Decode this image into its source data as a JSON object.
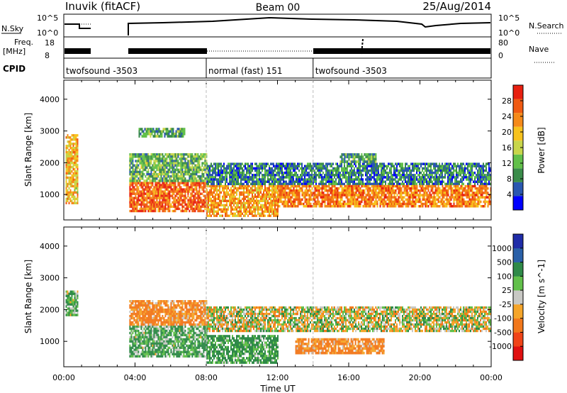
{
  "header": {
    "station": "Inuvik (fitACF)",
    "beam": "Beam 00",
    "date": "25/Aug/2014"
  },
  "panels": {
    "nsky": {
      "left_label": "N.Sky",
      "right_label": "N.Search",
      "left_ticks": [
        "10^5",
        "10^0"
      ],
      "right_ticks": [
        "10^5",
        "10^0"
      ]
    },
    "freq": {
      "left_label_1": "Freq.",
      "left_label_2": "[MHz]",
      "left_ticks": [
        "18",
        "8"
      ],
      "right_label": "Nave",
      "right_ticks": [
        "80",
        "0"
      ]
    },
    "cpid": {
      "label": "CPID",
      "segments": [
        {
          "label": "twofsound -3503",
          "start_hour": 0,
          "end_hour": 8
        },
        {
          "label": "normal (fast) 151",
          "start_hour": 8,
          "end_hour": 14
        },
        {
          "label": "twofsound -3503",
          "start_hour": 14,
          "end_hour": 24
        }
      ]
    }
  },
  "colors": {
    "power_scale": [
      "#0000ff",
      "#2a57b0",
      "#3a8c4a",
      "#62c04a",
      "#c8d64a",
      "#f7c21e",
      "#f58a1a",
      "#f05a12",
      "#e82010"
    ],
    "velocity_scale": [
      "#e01010",
      "#f04418",
      "#f2781c",
      "#f5a52a",
      "#c8c8c4",
      "#62c04a",
      "#2f8a48",
      "#2a60a8",
      "#1f2ca8"
    ]
  },
  "chart_data": [
    {
      "type": "heatmap",
      "title": "",
      "xlabel": "",
      "ylabel": "Slant Range [km]",
      "xlim": [
        0,
        24
      ],
      "ylim": [
        200,
        4600
      ],
      "x_ticks": [
        "00:00",
        "04:00",
        "08:00",
        "12:00",
        "16:00",
        "20:00",
        "00:00"
      ],
      "y_ticks": [
        1000,
        2000,
        3000,
        4000
      ],
      "colorbar": {
        "label": "Power [dB]",
        "range": [
          0,
          32
        ],
        "ticks": [
          4,
          8,
          12,
          16,
          20,
          24,
          28
        ]
      },
      "data_gap_hours": [
        [
          1.45,
          3.6
        ]
      ],
      "echo_regions": [
        {
          "t": [
            0.1,
            0.8
          ],
          "r": [
            700,
            2900
          ],
          "value": 20
        },
        {
          "t": [
            3.6,
            8.0
          ],
          "r": [
            450,
            1400
          ],
          "value": 26
        },
        {
          "t": [
            3.6,
            8.0
          ],
          "r": [
            1400,
            2300
          ],
          "value": 12
        },
        {
          "t": [
            4.2,
            6.8
          ],
          "r": [
            2800,
            3100
          ],
          "value": 10
        },
        {
          "t": [
            8.0,
            12.0
          ],
          "r": [
            300,
            1300
          ],
          "value": 22
        },
        {
          "t": [
            8.0,
            24.0
          ],
          "r": [
            1300,
            2000
          ],
          "value": 8
        },
        {
          "t": [
            12.0,
            24.0
          ],
          "r": [
            600,
            1300
          ],
          "value": 24
        },
        {
          "t": [
            15.5,
            17.5
          ],
          "r": [
            2000,
            2300
          ],
          "value": 10
        }
      ]
    },
    {
      "type": "heatmap",
      "title": "",
      "xlabel": "Time UT",
      "ylabel": "Slant Range [km]",
      "xlim": [
        0,
        24
      ],
      "ylim": [
        200,
        4600
      ],
      "x_ticks": [
        "00:00",
        "04:00",
        "08:00",
        "12:00",
        "16:00",
        "20:00",
        "00:00"
      ],
      "y_ticks": [
        1000,
        2000,
        3000,
        4000
      ],
      "colorbar": {
        "label": "Velocity [m s^-1]",
        "ticks": [
          "1000",
          "500",
          "100",
          "25",
          "-25",
          "-100",
          "-500",
          "-1000"
        ]
      },
      "data_gap_hours": [
        [
          1.45,
          3.6
        ]
      ],
      "echo_regions": [
        {
          "t": [
            0.1,
            0.8
          ],
          "r": [
            1800,
            2600
          ],
          "value": 100
        },
        {
          "t": [
            3.6,
            8.0
          ],
          "r": [
            500,
            1500
          ],
          "value": 120
        },
        {
          "t": [
            3.6,
            8.0
          ],
          "r": [
            1500,
            2300
          ],
          "value": -150
        },
        {
          "t": [
            8.0,
            12.0
          ],
          "r": [
            300,
            1200
          ],
          "value": 150
        },
        {
          "t": [
            8.0,
            24.0
          ],
          "r": [
            1300,
            2100
          ],
          "value": 0
        },
        {
          "t": [
            13.0,
            18.0
          ],
          "r": [
            600,
            1100
          ],
          "value": -150
        }
      ]
    }
  ]
}
